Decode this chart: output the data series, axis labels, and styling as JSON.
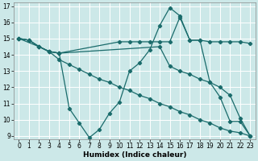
{
  "xlabel": "Humidex (Indice chaleur)",
  "ylabel": "",
  "bg_color": "#cce8e8",
  "line_color": "#1a6b6b",
  "grid_color": "#ffffff",
  "xlim": [
    -0.5,
    23.5
  ],
  "ylim": [
    8.8,
    17.2
  ],
  "yticks": [
    9,
    10,
    11,
    12,
    13,
    14,
    15,
    16,
    17
  ],
  "xticks": [
    0,
    1,
    2,
    3,
    4,
    5,
    6,
    7,
    8,
    9,
    10,
    11,
    12,
    13,
    14,
    15,
    16,
    17,
    18,
    19,
    20,
    21,
    22,
    23
  ],
  "lines": [
    {
      "x": [
        0,
        1,
        2,
        3,
        4,
        5,
        6,
        7,
        8,
        9,
        10,
        11,
        12,
        13,
        14,
        15,
        16,
        17,
        18,
        19,
        20,
        21,
        22,
        23
      ],
      "y": [
        15,
        14.9,
        14.5,
        14.2,
        14.1,
        10.7,
        9.8,
        8.9,
        9.4,
        10.4,
        11.1,
        13.0,
        13.5,
        14.3,
        15.8,
        16.9,
        16.4,
        14.9,
        14.9,
        12.3,
        11.4,
        9.9,
        9.9,
        9.0
      ]
    },
    {
      "x": [
        0,
        2,
        3,
        4,
        10,
        11,
        12,
        13,
        14,
        15,
        16,
        17,
        18,
        19,
        20,
        21,
        22,
        23
      ],
      "y": [
        15,
        14.5,
        14.2,
        14.1,
        14.8,
        14.8,
        14.8,
        14.8,
        14.8,
        14.8,
        16.3,
        14.9,
        14.9,
        14.8,
        14.8,
        14.8,
        14.8,
        14.7
      ]
    },
    {
      "x": [
        0,
        1,
        2,
        3,
        4,
        5,
        6,
        7,
        8,
        9,
        10,
        11,
        12,
        13,
        14,
        15,
        16,
        17,
        18,
        19,
        20,
        21,
        22,
        23
      ],
      "y": [
        15,
        14.9,
        14.5,
        14.2,
        13.7,
        13.4,
        13.1,
        12.8,
        12.5,
        12.3,
        12.0,
        11.8,
        11.5,
        11.3,
        11.0,
        10.8,
        10.5,
        10.3,
        10.0,
        9.8,
        9.5,
        9.3,
        9.2,
        9.0
      ]
    },
    {
      "x": [
        0,
        1,
        2,
        3,
        4,
        14,
        15,
        16,
        17,
        18,
        19,
        20,
        21,
        22,
        23
      ],
      "y": [
        15,
        14.9,
        14.5,
        14.2,
        14.1,
        14.5,
        13.3,
        13.0,
        12.8,
        12.5,
        12.3,
        12.0,
        11.5,
        10.1,
        9.0
      ]
    }
  ]
}
